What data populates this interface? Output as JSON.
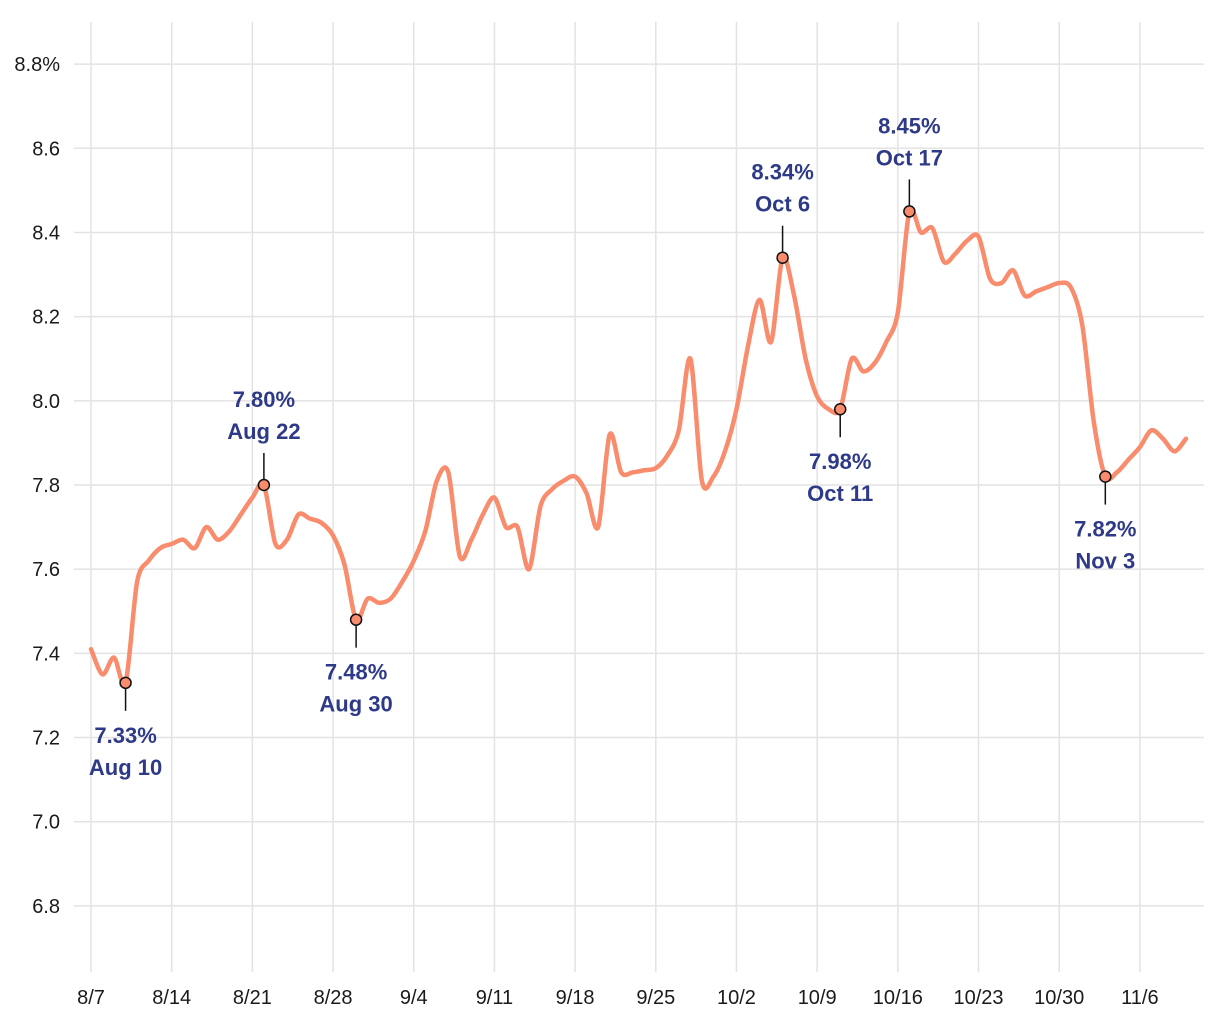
{
  "colors": {
    "line": "#F98C6D",
    "annotation_text": "#2E3A87",
    "grid": "#e3e3e3",
    "axis_text": "#1a1a1a",
    "marker_fill": "#F98C6D"
  },
  "chart_data": {
    "type": "line",
    "x_type": "date",
    "year": 2023,
    "ylim": [
      6.7,
      8.9
    ],
    "xlim": [
      "2023-08-07",
      "2023-11-10"
    ],
    "grid": true,
    "y_ticks": [
      6.8,
      7.0,
      7.2,
      7.4,
      7.6,
      7.8,
      8.0,
      8.2,
      8.4,
      8.6,
      8.8
    ],
    "y_tick_labels": [
      "6.8",
      "7.0",
      "7.2",
      "7.4",
      "7.6",
      "7.8",
      "8.0",
      "8.2",
      "8.4",
      "8.6",
      "8.8%"
    ],
    "x_ticks": [
      "2023-08-07",
      "2023-08-14",
      "2023-08-21",
      "2023-08-28",
      "2023-09-04",
      "2023-09-11",
      "2023-09-18",
      "2023-09-25",
      "2023-10-02",
      "2023-10-09",
      "2023-10-16",
      "2023-10-23",
      "2023-10-30",
      "2023-11-06"
    ],
    "x_tick_labels": [
      "8/7",
      "8/14",
      "8/21",
      "8/28",
      "9/4",
      "9/11",
      "9/18",
      "9/25",
      "10/2",
      "10/9",
      "10/16",
      "10/23",
      "10/30",
      "11/6"
    ],
    "series": [
      {
        "points": [
          [
            "2023-08-07",
            7.41
          ],
          [
            "2023-08-08",
            7.35
          ],
          [
            "2023-08-09",
            7.39
          ],
          [
            "2023-08-10",
            7.33
          ],
          [
            "2023-08-11",
            7.57
          ],
          [
            "2023-08-12",
            7.62
          ],
          [
            "2023-08-13",
            7.65
          ],
          [
            "2023-08-14",
            7.66
          ],
          [
            "2023-08-15",
            7.67
          ],
          [
            "2023-08-16",
            7.65
          ],
          [
            "2023-08-17",
            7.7
          ],
          [
            "2023-08-18",
            7.67
          ],
          [
            "2023-08-19",
            7.69
          ],
          [
            "2023-08-20",
            7.73
          ],
          [
            "2023-08-21",
            7.77
          ],
          [
            "2023-08-22",
            7.8
          ],
          [
            "2023-08-23",
            7.66
          ],
          [
            "2023-08-24",
            7.67
          ],
          [
            "2023-08-25",
            7.73
          ],
          [
            "2023-08-26",
            7.72
          ],
          [
            "2023-08-27",
            7.71
          ],
          [
            "2023-08-28",
            7.68
          ],
          [
            "2023-08-29",
            7.61
          ],
          [
            "2023-08-30",
            7.48
          ],
          [
            "2023-08-31",
            7.53
          ],
          [
            "2023-09-01",
            7.52
          ],
          [
            "2023-09-02",
            7.53
          ],
          [
            "2023-09-03",
            7.57
          ],
          [
            "2023-09-04",
            7.62
          ],
          [
            "2023-09-05",
            7.69
          ],
          [
            "2023-09-06",
            7.81
          ],
          [
            "2023-09-07",
            7.83
          ],
          [
            "2023-09-08",
            7.63
          ],
          [
            "2023-09-09",
            7.67
          ],
          [
            "2023-09-10",
            7.73
          ],
          [
            "2023-09-11",
            7.77
          ],
          [
            "2023-09-12",
            7.7
          ],
          [
            "2023-09-13",
            7.7
          ],
          [
            "2023-09-14",
            7.6
          ],
          [
            "2023-09-15",
            7.75
          ],
          [
            "2023-09-16",
            7.79
          ],
          [
            "2023-09-17",
            7.81
          ],
          [
            "2023-09-18",
            7.82
          ],
          [
            "2023-09-19",
            7.78
          ],
          [
            "2023-09-20",
            7.7
          ],
          [
            "2023-09-21",
            7.92
          ],
          [
            "2023-09-22",
            7.83
          ],
          [
            "2023-09-23",
            7.83
          ],
          [
            "2023-09-24",
            7.835
          ],
          [
            "2023-09-25",
            7.84
          ],
          [
            "2023-09-26",
            7.87
          ],
          [
            "2023-09-27",
            7.93
          ],
          [
            "2023-09-28",
            8.1
          ],
          [
            "2023-09-29",
            7.81
          ],
          [
            "2023-09-30",
            7.82
          ],
          [
            "2023-10-01",
            7.88
          ],
          [
            "2023-10-02",
            7.98
          ],
          [
            "2023-10-03",
            8.13
          ],
          [
            "2023-10-04",
            8.24
          ],
          [
            "2023-10-05",
            8.14
          ],
          [
            "2023-10-06",
            8.34
          ],
          [
            "2023-10-07",
            8.25
          ],
          [
            "2023-10-08",
            8.1
          ],
          [
            "2023-10-09",
            8.01
          ],
          [
            "2023-10-10",
            7.98
          ],
          [
            "2023-10-11",
            7.98
          ],
          [
            "2023-10-12",
            8.1
          ],
          [
            "2023-10-13",
            8.07
          ],
          [
            "2023-10-14",
            8.09
          ],
          [
            "2023-10-15",
            8.14
          ],
          [
            "2023-10-16",
            8.21
          ],
          [
            "2023-10-17",
            8.45
          ],
          [
            "2023-10-18",
            8.4
          ],
          [
            "2023-10-19",
            8.41
          ],
          [
            "2023-10-20",
            8.33
          ],
          [
            "2023-10-21",
            8.35
          ],
          [
            "2023-10-22",
            8.38
          ],
          [
            "2023-10-23",
            8.39
          ],
          [
            "2023-10-24",
            8.29
          ],
          [
            "2023-10-25",
            8.28
          ],
          [
            "2023-10-26",
            8.31
          ],
          [
            "2023-10-27",
            8.25
          ],
          [
            "2023-10-28",
            8.26
          ],
          [
            "2023-10-29",
            8.27
          ],
          [
            "2023-10-30",
            8.28
          ],
          [
            "2023-10-31",
            8.27
          ],
          [
            "2023-11-01",
            8.18
          ],
          [
            "2023-11-02",
            7.95
          ],
          [
            "2023-11-03",
            7.82
          ],
          [
            "2023-11-04",
            7.83
          ],
          [
            "2023-11-05",
            7.86
          ],
          [
            "2023-11-06",
            7.89
          ],
          [
            "2023-11-07",
            7.93
          ],
          [
            "2023-11-08",
            7.91
          ],
          [
            "2023-11-09",
            7.88
          ],
          [
            "2023-11-10",
            7.91
          ]
        ]
      }
    ],
    "annotations": [
      {
        "date": "2023-08-10",
        "value": 7.33,
        "value_label": "7.33%",
        "date_label": "Aug 10",
        "position": "below"
      },
      {
        "date": "2023-08-22",
        "value": 7.8,
        "value_label": "7.80%",
        "date_label": "Aug 22",
        "position": "above"
      },
      {
        "date": "2023-08-30",
        "value": 7.48,
        "value_label": "7.48%",
        "date_label": "Aug 30",
        "position": "below"
      },
      {
        "date": "2023-10-06",
        "value": 8.34,
        "value_label": "8.34%",
        "date_label": "Oct 6",
        "position": "above"
      },
      {
        "date": "2023-10-11",
        "value": 7.98,
        "value_label": "7.98%",
        "date_label": "Oct 11",
        "position": "below"
      },
      {
        "date": "2023-10-17",
        "value": 8.45,
        "value_label": "8.45%",
        "date_label": "Oct 17",
        "position": "above"
      },
      {
        "date": "2023-11-03",
        "value": 7.82,
        "value_label": "7.82%",
        "date_label": "Nov 3",
        "position": "below"
      }
    ]
  }
}
